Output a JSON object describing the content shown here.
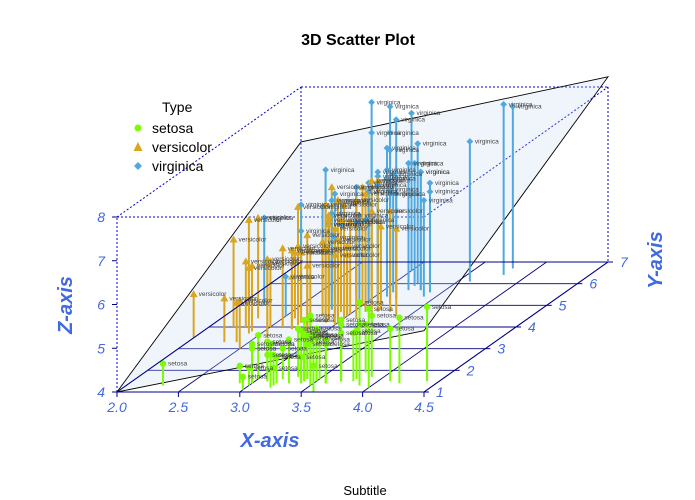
{
  "chart_data": {
    "type": "scatter",
    "title": "3D Scatter Plot",
    "subtitle": "Subtitle",
    "xlabel": "X-axis",
    "ylabel": "Y-axis",
    "zlabel": "Z-axis",
    "xlim": [
      2.0,
      4.5
    ],
    "ylim": [
      1,
      7
    ],
    "zlim": [
      4,
      8
    ],
    "x_ticks": [
      "2.0",
      "2.5",
      "3.0",
      "3.5",
      "4.0",
      "4.5"
    ],
    "y_ticks": [
      "1",
      "2",
      "3",
      "4",
      "5",
      "6",
      "7"
    ],
    "z_ticks": [
      "4",
      "5",
      "6",
      "7",
      "8"
    ],
    "grid": true,
    "drop_lines": true,
    "regression_plane": true,
    "legend": {
      "title": "Type",
      "position": "top-left",
      "entries": [
        {
          "name": "setosa",
          "color": "#7CFC00",
          "shape": "circle"
        },
        {
          "name": "versicolor",
          "color": "#DAA520",
          "shape": "triangle"
        },
        {
          "name": "virginica",
          "color": "#4FA8E0",
          "shape": "diamond"
        }
      ]
    },
    "series": [
      {
        "name": "setosa",
        "color": "#7CFC00",
        "points": [
          [
            3.5,
            1.4,
            5.1
          ],
          [
            3.0,
            1.4,
            4.9
          ],
          [
            3.2,
            1.3,
            4.7
          ],
          [
            3.1,
            1.5,
            4.6
          ],
          [
            3.6,
            1.4,
            5.0
          ],
          [
            3.9,
            1.7,
            5.4
          ],
          [
            3.4,
            1.4,
            4.6
          ],
          [
            3.4,
            1.5,
            5.0
          ],
          [
            2.9,
            1.4,
            4.4
          ],
          [
            3.1,
            1.5,
            4.9
          ],
          [
            3.7,
            1.5,
            5.4
          ],
          [
            3.4,
            1.6,
            4.8
          ],
          [
            3.0,
            1.4,
            4.8
          ],
          [
            3.0,
            1.1,
            4.3
          ],
          [
            4.0,
            1.2,
            5.8
          ],
          [
            4.4,
            1.5,
            5.7
          ],
          [
            3.9,
            1.3,
            5.4
          ],
          [
            3.5,
            1.4,
            5.1
          ],
          [
            3.8,
            1.7,
            5.7
          ],
          [
            3.8,
            1.5,
            5.1
          ],
          [
            3.4,
            1.7,
            5.4
          ],
          [
            3.7,
            1.5,
            5.1
          ],
          [
            3.6,
            1.0,
            4.6
          ],
          [
            3.3,
            1.7,
            5.1
          ],
          [
            3.4,
            1.9,
            4.8
          ],
          [
            3.0,
            1.6,
            5.0
          ],
          [
            3.4,
            1.6,
            5.0
          ],
          [
            3.5,
            1.5,
            5.2
          ],
          [
            3.4,
            1.4,
            5.2
          ],
          [
            3.2,
            1.6,
            4.7
          ],
          [
            3.1,
            1.6,
            4.8
          ],
          [
            3.4,
            1.5,
            5.4
          ],
          [
            4.1,
            1.5,
            5.2
          ],
          [
            4.2,
            1.4,
            5.5
          ],
          [
            3.1,
            1.5,
            4.9
          ],
          [
            3.2,
            1.2,
            5.0
          ],
          [
            3.5,
            1.3,
            5.5
          ],
          [
            3.6,
            1.4,
            4.9
          ],
          [
            3.0,
            1.3,
            4.4
          ],
          [
            3.4,
            1.5,
            5.1
          ],
          [
            3.5,
            1.3,
            5.0
          ],
          [
            2.3,
            1.3,
            4.5
          ],
          [
            3.2,
            1.3,
            4.4
          ],
          [
            3.5,
            1.6,
            5.0
          ],
          [
            3.8,
            1.9,
            5.1
          ],
          [
            3.0,
            1.4,
            4.8
          ],
          [
            3.8,
            1.6,
            5.1
          ],
          [
            3.2,
            1.4,
            4.6
          ],
          [
            3.7,
            1.5,
            5.3
          ],
          [
            3.3,
            1.4,
            5.0
          ]
        ]
      },
      {
        "name": "versicolor",
        "color": "#DAA520",
        "points": [
          [
            3.2,
            4.7,
            7.0
          ],
          [
            3.2,
            4.5,
            6.4
          ],
          [
            3.1,
            4.9,
            6.9
          ],
          [
            2.3,
            4.0,
            5.5
          ],
          [
            2.8,
            4.6,
            6.5
          ],
          [
            2.8,
            4.5,
            5.7
          ],
          [
            3.3,
            4.7,
            6.3
          ],
          [
            2.4,
            3.3,
            4.9
          ],
          [
            2.9,
            4.6,
            6.6
          ],
          [
            2.7,
            3.9,
            5.2
          ],
          [
            2.0,
            3.5,
            5.0
          ],
          [
            3.0,
            4.2,
            5.9
          ],
          [
            2.2,
            4.0,
            6.0
          ],
          [
            2.9,
            4.7,
            6.1
          ],
          [
            2.9,
            3.6,
            5.6
          ],
          [
            3.1,
            4.4,
            6.7
          ],
          [
            3.0,
            4.5,
            5.6
          ],
          [
            2.7,
            4.1,
            5.8
          ],
          [
            2.2,
            4.5,
            6.2
          ],
          [
            2.5,
            3.9,
            5.6
          ],
          [
            3.2,
            4.8,
            5.9
          ],
          [
            2.8,
            4.0,
            6.1
          ],
          [
            2.5,
            4.9,
            6.3
          ],
          [
            2.8,
            4.7,
            6.1
          ],
          [
            2.9,
            4.3,
            6.4
          ],
          [
            3.0,
            4.4,
            6.6
          ],
          [
            2.8,
            4.8,
            6.8
          ],
          [
            3.0,
            5.0,
            6.7
          ],
          [
            2.9,
            4.5,
            6.0
          ],
          [
            2.6,
            3.5,
            5.7
          ],
          [
            2.4,
            3.8,
            5.5
          ],
          [
            2.4,
            3.7,
            5.5
          ],
          [
            2.7,
            3.9,
            5.8
          ],
          [
            2.7,
            5.1,
            6.0
          ],
          [
            3.0,
            4.5,
            5.4
          ],
          [
            3.4,
            4.5,
            6.0
          ],
          [
            3.1,
            4.7,
            6.7
          ],
          [
            2.3,
            4.4,
            6.3
          ],
          [
            3.0,
            4.1,
            5.6
          ],
          [
            2.5,
            4.0,
            5.5
          ],
          [
            2.6,
            4.4,
            5.5
          ],
          [
            3.0,
            4.6,
            6.1
          ],
          [
            2.6,
            4.0,
            5.8
          ],
          [
            2.3,
            3.3,
            5.0
          ],
          [
            2.7,
            4.2,
            5.6
          ],
          [
            3.0,
            4.2,
            5.7
          ],
          [
            2.9,
            4.2,
            5.7
          ],
          [
            2.9,
            4.3,
            6.2
          ],
          [
            2.5,
            3.0,
            5.1
          ],
          [
            2.8,
            4.1,
            5.7
          ]
        ]
      },
      {
        "name": "virginica",
        "color": "#4FA8E0",
        "points": [
          [
            3.3,
            6.0,
            6.3
          ],
          [
            2.7,
            5.1,
            5.8
          ],
          [
            3.0,
            5.9,
            7.1
          ],
          [
            2.9,
            5.6,
            6.3
          ],
          [
            3.0,
            5.8,
            6.5
          ],
          [
            3.0,
            6.6,
            7.6
          ],
          [
            2.5,
            4.5,
            4.9
          ],
          [
            2.9,
            6.3,
            7.3
          ],
          [
            2.5,
            5.8,
            6.7
          ],
          [
            3.6,
            6.1,
            7.2
          ],
          [
            3.2,
            5.1,
            6.5
          ],
          [
            2.7,
            5.3,
            6.4
          ],
          [
            3.0,
            5.5,
            6.8
          ],
          [
            2.5,
            5.0,
            5.7
          ],
          [
            2.8,
            5.1,
            5.8
          ],
          [
            3.2,
            5.3,
            6.4
          ],
          [
            3.0,
            5.5,
            6.5
          ],
          [
            3.8,
            6.7,
            7.7
          ],
          [
            2.6,
            6.9,
            7.7
          ],
          [
            2.2,
            5.0,
            6.0
          ],
          [
            3.2,
            5.7,
            6.9
          ],
          [
            2.8,
            4.9,
            5.6
          ],
          [
            2.8,
            6.7,
            7.7
          ],
          [
            2.7,
            4.9,
            6.3
          ],
          [
            3.3,
            5.7,
            6.7
          ],
          [
            3.2,
            6.0,
            7.2
          ],
          [
            2.8,
            4.8,
            6.2
          ],
          [
            3.0,
            4.9,
            6.1
          ],
          [
            2.8,
            5.6,
            6.4
          ],
          [
            3.0,
            5.8,
            7.2
          ],
          [
            2.8,
            6.1,
            7.4
          ],
          [
            3.8,
            6.4,
            7.9
          ],
          [
            2.8,
            5.6,
            6.4
          ],
          [
            2.8,
            5.1,
            6.3
          ],
          [
            2.6,
            5.6,
            6.1
          ],
          [
            3.0,
            6.1,
            7.7
          ],
          [
            3.4,
            5.6,
            6.3
          ],
          [
            3.1,
            5.5,
            6.4
          ],
          [
            3.0,
            4.8,
            6.0
          ],
          [
            3.1,
            5.4,
            6.9
          ],
          [
            3.1,
            5.6,
            6.7
          ],
          [
            3.1,
            5.1,
            6.9
          ],
          [
            2.7,
            5.1,
            5.8
          ],
          [
            3.2,
            5.9,
            6.8
          ],
          [
            3.3,
            5.7,
            6.7
          ],
          [
            3.0,
            5.2,
            6.7
          ],
          [
            2.5,
            5.0,
            6.3
          ],
          [
            3.0,
            5.2,
            6.5
          ],
          [
            3.4,
            5.4,
            6.2
          ],
          [
            3.0,
            5.1,
            5.9
          ]
        ]
      }
    ]
  }
}
